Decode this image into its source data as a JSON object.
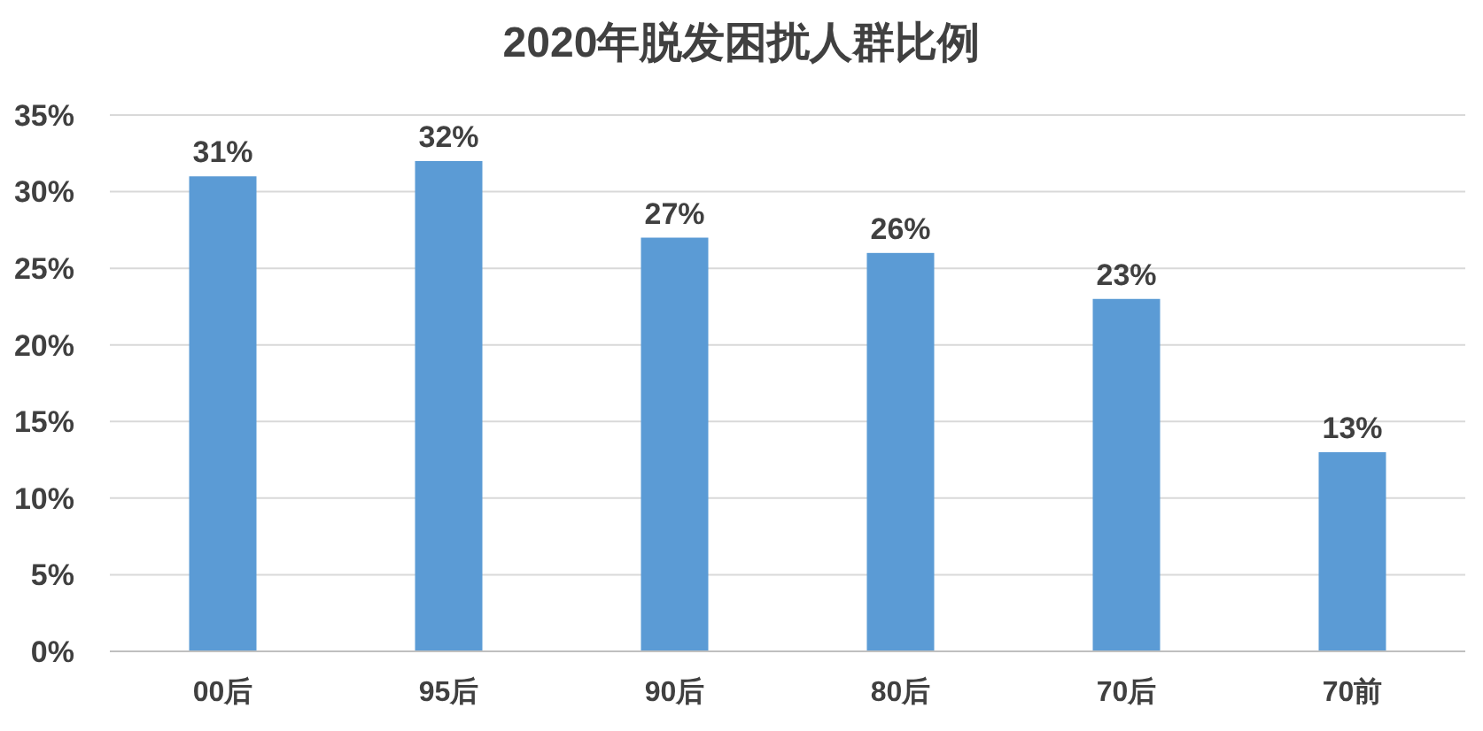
{
  "chart_data": {
    "type": "bar",
    "title": "2020年脱发困扰人群比例",
    "categories": [
      "00后",
      "95后",
      "90后",
      "80后",
      "70后",
      "70前"
    ],
    "values": [
      31,
      32,
      27,
      26,
      23,
      13
    ],
    "value_labels": [
      "31%",
      "32%",
      "27%",
      "26%",
      "23%",
      "13%"
    ],
    "color": "#5b9bd5",
    "ylim": [
      0,
      35
    ],
    "yticks": [
      {
        "value": 0,
        "label": "0%"
      },
      {
        "value": 5,
        "label": "5%"
      },
      {
        "value": 10,
        "label": "10%"
      },
      {
        "value": 15,
        "label": "15%"
      },
      {
        "value": 20,
        "label": "20%"
      },
      {
        "value": 25,
        "label": "25%"
      },
      {
        "value": 30,
        "label": "30%"
      },
      {
        "value": 35,
        "label": "35%"
      }
    ],
    "grid": "y"
  }
}
